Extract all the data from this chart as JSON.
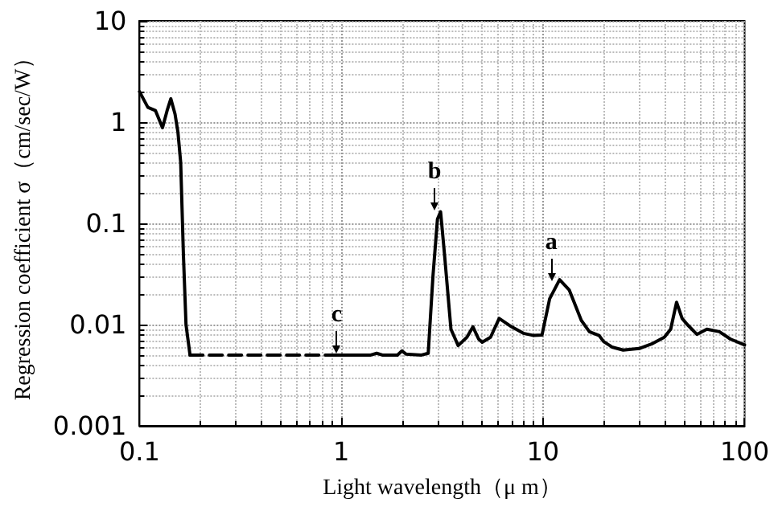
{
  "chart_data": {
    "type": "line",
    "xlabel": "Light wavelength（μ m）",
    "ylabel": "Regression coefficient σ（cm/sec/W）",
    "log": "xy",
    "grid": true,
    "marker": "none",
    "xlim": [
      0.1,
      100
    ],
    "xticks": [
      0.1,
      1,
      10,
      100
    ],
    "ylim": [
      0.001,
      10
    ],
    "yticks": [
      0.001,
      0.01,
      0.1,
      1,
      10
    ],
    "series": [
      {
        "color": "#000000",
        "line_style": "solid",
        "x": [
          0.1,
          0.11,
          0.12,
          0.13,
          0.137,
          0.143,
          0.15,
          0.155,
          0.16,
          0.165,
          0.17,
          0.178
        ],
        "values": [
          2,
          1.4,
          1.3,
          0.88,
          1.3,
          1.7,
          1.2,
          0.8,
          0.4,
          0.05,
          0.01,
          0.005
        ]
      },
      {
        "color": "#000000",
        "line_style": "dashed",
        "x": [
          0.178,
          0.95
        ],
        "values": [
          0.005,
          0.005
        ]
      },
      {
        "color": "#000000",
        "line_style": "solid",
        "x": [
          0.95,
          1.4,
          1.5,
          1.6,
          1.9,
          2.0,
          2.1,
          2.5,
          2.7,
          2.85,
          3.0,
          3.11,
          3.25,
          3.5,
          3.8,
          4.2,
          4.5,
          4.8,
          5.0,
          5.5,
          6.07,
          7,
          8,
          9,
          9.9,
          10.8,
          12.1,
          13.5,
          15.5,
          17,
          19,
          20,
          22,
          25,
          30,
          35,
          40,
          43,
          46,
          49,
          52,
          58,
          65,
          75,
          85,
          100
        ],
        "values": [
          0.005,
          0.005,
          0.0052,
          0.005,
          0.005,
          0.0055,
          0.0051,
          0.005,
          0.0052,
          0.03,
          0.11,
          0.13,
          0.05,
          0.009,
          0.0062,
          0.0075,
          0.0095,
          0.0072,
          0.0067,
          0.0075,
          0.0115,
          0.0095,
          0.0082,
          0.0078,
          0.0079,
          0.018,
          0.0278,
          0.022,
          0.011,
          0.0085,
          0.0078,
          0.0068,
          0.006,
          0.0056,
          0.0058,
          0.0065,
          0.0075,
          0.009,
          0.0166,
          0.0115,
          0.01,
          0.008,
          0.009,
          0.0085,
          0.0072,
          0.0063
        ]
      }
    ],
    "annotations": [
      {
        "text": "a",
        "x": 11,
        "y": 0.026
      },
      {
        "text": "b",
        "x": 2.9,
        "y": 0.13
      },
      {
        "text": "c",
        "x": 0.95,
        "y": 0.005
      }
    ]
  }
}
